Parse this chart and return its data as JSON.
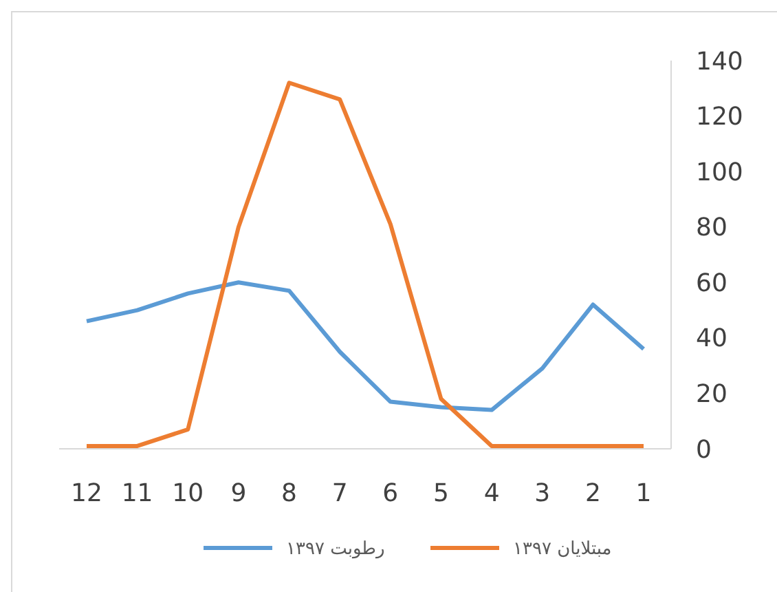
{
  "chart_data": {
    "type": "line",
    "categories": [
      "12",
      "11",
      "10",
      "9",
      "8",
      "7",
      "6",
      "5",
      "4",
      "3",
      "2",
      "1"
    ],
    "series": [
      {
        "name": "رطوبت ۱۳۹۷",
        "color": "#5b9bd5",
        "values": [
          46,
          50,
          56,
          60,
          57,
          35,
          17,
          15,
          14,
          29,
          52,
          36
        ]
      },
      {
        "name": "مبتلایان ۱۳۹۷",
        "color": "#ed7d31",
        "values": [
          1,
          1,
          7,
          80,
          132,
          126,
          81,
          18,
          1,
          1,
          1,
          1
        ]
      }
    ],
    "ylim": [
      0,
      140
    ],
    "yticks": [
      0,
      20,
      40,
      60,
      80,
      100,
      120,
      140
    ],
    "grid": false,
    "legend": "bottom",
    "marker": "none",
    "line_style": "solid"
  }
}
